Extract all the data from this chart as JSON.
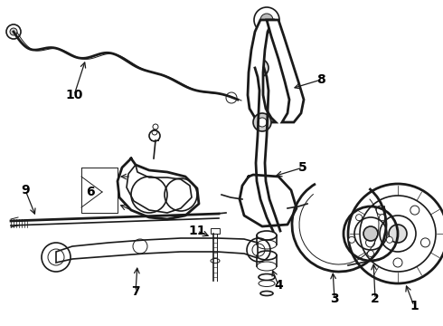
{
  "background_color": "#ffffff",
  "line_color": "#1a1a1a",
  "fig_width": 4.9,
  "fig_height": 3.6,
  "dpi": 100,
  "xlim": [
    0,
    490
  ],
  "ylim": [
    0,
    360
  ]
}
